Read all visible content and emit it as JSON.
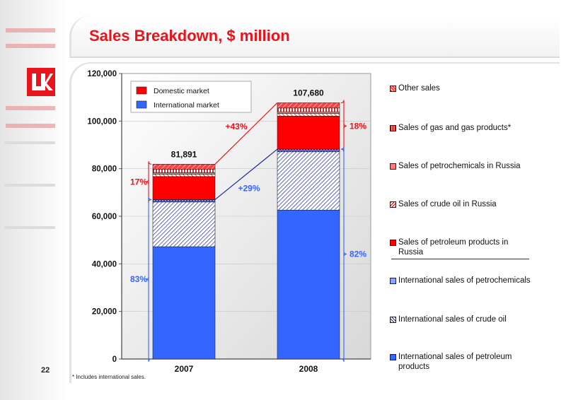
{
  "page": {
    "title": "Sales Breakdown, $ million",
    "page_number": "22",
    "footnote": "* Includes international sales."
  },
  "colors": {
    "accent_red": "#e8141b",
    "domestic": "#ff0000",
    "international": "#3366ff",
    "navy": "#1f2a9a",
    "brace_red": "#e8141b",
    "brace_blue": "#3366ff"
  },
  "chart_data": {
    "type": "bar",
    "stacked": true,
    "categories": [
      "2007",
      "2008"
    ],
    "ylim": [
      0,
      120000
    ],
    "yticks": [
      "0",
      "20,000",
      "40,000",
      "60,000",
      "80,000",
      "100,000",
      "120,000"
    ],
    "totals": [
      "81,891",
      "107,680"
    ],
    "series": [
      {
        "name": "International sales of petroleum products",
        "values": [
          47200,
          62600
        ],
        "fill": "blue"
      },
      {
        "name": "International sales of crude oil",
        "values": [
          18800,
          24500
        ],
        "fill": "hatch-blue"
      },
      {
        "name": "International sales of petrochemicals",
        "values": [
          1000,
          1100
        ],
        "fill": "cross-blue"
      },
      {
        "name": "Sales of petroleum products in Russia",
        "values": [
          9700,
          13900
        ],
        "fill": "red"
      },
      {
        "name": "Sales of crude oil in Russia",
        "values": [
          1000,
          1100
        ],
        "fill": "hatch-red"
      },
      {
        "name": "Sales of petrochemicals in Russia",
        "values": [
          600,
          700
        ],
        "fill": "light-red"
      },
      {
        "name": "Sales of gas and gas products*",
        "values": [
          1500,
          1600
        ],
        "fill": "striped-red"
      },
      {
        "name": "Other sales",
        "values": [
          2091,
          2180
        ],
        "fill": "diag-red"
      }
    ],
    "legend_inset": [
      {
        "label": "Domestic market",
        "color": "#ff0000"
      },
      {
        "label": "International market",
        "color": "#3366ff"
      }
    ],
    "annotations": {
      "domestic_share": [
        "17%",
        "18%"
      ],
      "international_share": [
        "83%",
        "82%"
      ],
      "domestic_growth": "+43%",
      "international_growth": "+29%"
    },
    "legend_position": "right"
  }
}
